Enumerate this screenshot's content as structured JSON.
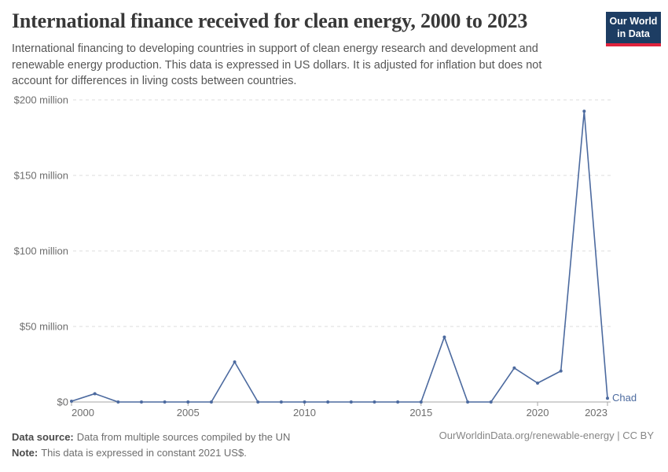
{
  "header": {
    "title": "International finance received for clean energy, 2000 to 2023",
    "subtitle": "International financing to developing countries in support of clean energy research and development and renewable energy production. This data is expressed in US dollars. It is adjusted for inflation but does not account for differences in living costs between countries.",
    "logo": {
      "line1": "Our World",
      "line2": "in Data",
      "bg_color": "#1d3d63",
      "accent_color": "#e0233c"
    }
  },
  "chart_data": {
    "type": "line",
    "title": "International finance received for clean energy, 2000 to 2023",
    "entity": "Chad",
    "x": [
      2000,
      2001,
      2002,
      2003,
      2004,
      2005,
      2006,
      2007,
      2008,
      2009,
      2010,
      2011,
      2012,
      2013,
      2014,
      2015,
      2016,
      2017,
      2018,
      2019,
      2020,
      2021,
      2022,
      2023
    ],
    "values": [
      0.5,
      5.5,
      0,
      0,
      0,
      0,
      0,
      26.5,
      0,
      0,
      0,
      0,
      0,
      0,
      0,
      0,
      43,
      0,
      0,
      22.5,
      12.5,
      20.5,
      192.5,
      2.5
    ],
    "values_unit": "million constant 2021 US$",
    "xlabel": "",
    "ylabel": "",
    "ylim": [
      0,
      200
    ],
    "grid": true,
    "legend_position": "end-of-line-label",
    "line_color": "#4c6a9f",
    "grid_color": "#dcdcdc",
    "axis_line_color": "#a6a6a6",
    "tick_label_color": "#6d6d6d",
    "y_ticks": [
      {
        "value": 0,
        "label": "$0"
      },
      {
        "value": 50,
        "label": "$50 million"
      },
      {
        "value": 100,
        "label": "$100 million"
      },
      {
        "value": 150,
        "label": "$150 million"
      },
      {
        "value": 200,
        "label": "$200 million"
      }
    ],
    "x_ticks": [
      {
        "value": 2000,
        "label": "2000"
      },
      {
        "value": 2005,
        "label": "2005"
      },
      {
        "value": 2010,
        "label": "2010"
      },
      {
        "value": 2015,
        "label": "2015"
      },
      {
        "value": 2020,
        "label": "2020"
      },
      {
        "value": 2023,
        "label": "2023"
      }
    ]
  },
  "footer": {
    "source_label": "Data source:",
    "source_value": "Data from multiple sources compiled by the UN",
    "note_label": "Note:",
    "note_value": "This data is expressed in constant 2021 US$.",
    "credit": "OurWorldinData.org/renewable-energy | CC BY"
  }
}
